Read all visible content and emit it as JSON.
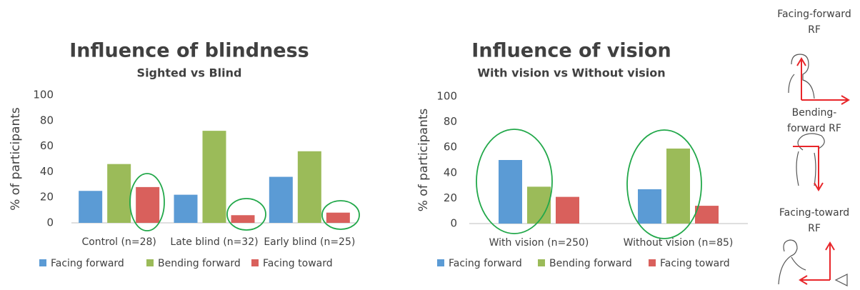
{
  "chart_data": [
    {
      "type": "bar",
      "title": "Influence of blindness",
      "subtitle": "Sighted vs Blind",
      "y_label": "% of participants",
      "categories": [
        "Control (n=28)",
        "Late blind (n=32)",
        "Early blind (n=25)"
      ],
      "series": [
        {
          "name": "Facing forward",
          "color": "#5b9bd5",
          "values": [
            25,
            22,
            36
          ]
        },
        {
          "name": "Bending forward",
          "color": "#9bbb59",
          "values": [
            46,
            72,
            56
          ]
        },
        {
          "name": "Facing toward",
          "color": "#d9605c",
          "values": [
            28,
            6,
            8
          ]
        }
      ],
      "ylim": [
        0,
        100
      ],
      "yticks": [
        0,
        20,
        40,
        60,
        80,
        100
      ],
      "grid": false,
      "legend": "bottom"
    },
    {
      "type": "bar",
      "title": "Influence of vision",
      "subtitle": "With vision vs Without vision",
      "y_label": "% of participants",
      "categories": [
        "With vision (n=250)",
        "Without vision (n=85)"
      ],
      "series": [
        {
          "name": "Facing forward",
          "color": "#5b9bd5",
          "values": [
            50,
            27
          ]
        },
        {
          "name": "Bending forward",
          "color": "#9bbb59",
          "values": [
            29,
            59
          ]
        },
        {
          "name": "Facing toward",
          "color": "#d9605c",
          "values": [
            21,
            14
          ]
        }
      ],
      "ylim": [
        0,
        100
      ],
      "yticks": [
        0,
        20,
        40,
        60,
        80,
        100
      ],
      "grid": false,
      "legend": "bottom"
    }
  ],
  "side_panel": {
    "labels": [
      {
        "lines": [
          "Facing-forward",
          "RF"
        ],
        "color": "#4f7fd8"
      },
      {
        "lines": [
          "Bending-",
          "forward RF"
        ],
        "color": "#9bbb3a"
      },
      {
        "lines": [
          "Facing-toward",
          "RF"
        ],
        "color": "#e8262a"
      }
    ]
  }
}
